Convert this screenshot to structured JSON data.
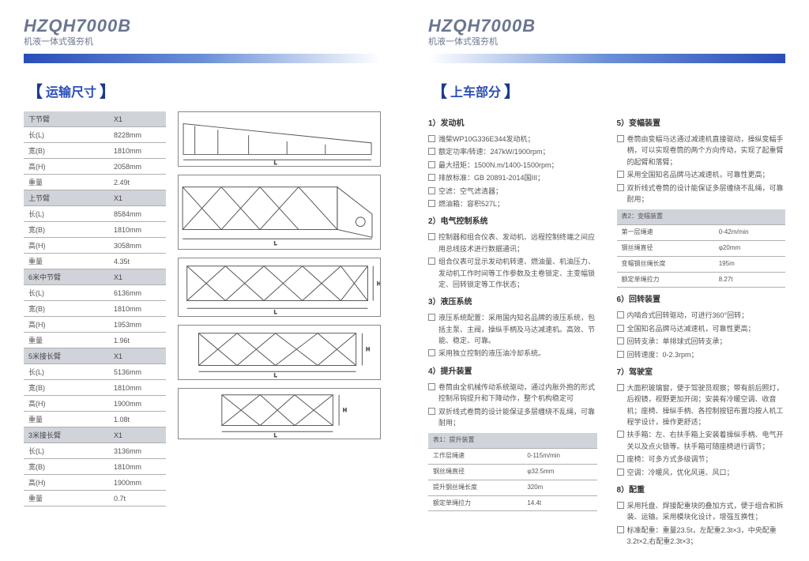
{
  "header": {
    "title": "HZQH7000B",
    "subtitle": "机液一体式强夯机"
  },
  "left": {
    "section": "运输尺寸",
    "groups": [
      {
        "name": "下节臂",
        "qty": "X1",
        "rows": [
          [
            "长(L)",
            "8228mm"
          ],
          [
            "宽(B)",
            "1810mm"
          ],
          [
            "高(H)",
            "2058mm"
          ],
          [
            "重量",
            "2.49t"
          ]
        ]
      },
      {
        "name": "上节臂",
        "qty": "X1",
        "rows": [
          [
            "长(L)",
            "8584mm"
          ],
          [
            "宽(B)",
            "1810mm"
          ],
          [
            "高(H)",
            "3058mm"
          ],
          [
            "重量",
            "4.35t"
          ]
        ]
      },
      {
        "name": "6米中节臂",
        "qty": "X1",
        "rows": [
          [
            "长(L)",
            "6136mm"
          ],
          [
            "宽(B)",
            "1810mm"
          ],
          [
            "高(H)",
            "1953mm"
          ],
          [
            "重量",
            "1.96t"
          ]
        ]
      },
      {
        "name": "5米接长臂",
        "qty": "X1",
        "rows": [
          [
            "长(L)",
            "5136mm"
          ],
          [
            "宽(B)",
            "1810mm"
          ],
          [
            "高(H)",
            "1900mm"
          ],
          [
            "重量",
            "1.08t"
          ]
        ]
      },
      {
        "name": "3米接长臂",
        "qty": "X1",
        "rows": [
          [
            "长(L)",
            "3136mm"
          ],
          [
            "宽(B)",
            "1810mm"
          ],
          [
            "高(H)",
            "1900mm"
          ],
          [
            "重量",
            "0.7t"
          ]
        ]
      }
    ]
  },
  "right": {
    "section": "上车部分",
    "col1": [
      {
        "h": "1）发动机",
        "items": [
          "潍柴WP10G336E344发动机；",
          "额定功率/转速：247kW/1900rpm；",
          "最大扭矩：1500N.m/1400-1500rpm；",
          "排放标准：GB 20891-2014国III；",
          "空滤：空气滤清器；",
          "燃油箱：容积527L；"
        ]
      },
      {
        "h": "2）电气控制系统",
        "items": [
          "控制器和组合仪表、发动机、远程控制终端之间应用总线技术进行数据通讯；",
          "组合仪表可显示发动机转速、燃油量、机油压力、发动机工作时间等工作参数及主卷锁定、主变幅锁定、回转锁定等工作状态；"
        ]
      },
      {
        "h": "3）液压系统",
        "items": [
          "液压系统配置：采用国内知名品牌的液压系统，包括主泵、主阀，操纵手柄及马达减速机。高效、节能、稳定、可靠。",
          "采用独立控制的液压油冷却系统。"
        ]
      },
      {
        "h": "4）提升装置",
        "items": [
          "卷筒由全机械传动系统驱动，通过内胀外抱的形式控制吊钩提升和下降动作，整个机构稳定可",
          "双折线式卷筒的设计能保证多层缠绕不乱绳，可靠耐用；"
        ]
      }
    ],
    "table1": {
      "title": "表1：提升装置",
      "rows": [
        [
          "工作层绳速",
          "0-115m/min"
        ],
        [
          "钢丝绳直径",
          "φ32.5mm"
        ],
        [
          "提升钢丝绳长度",
          "320m"
        ],
        [
          "额定单绳拉力",
          "14.4t"
        ]
      ]
    },
    "col2": [
      {
        "h": "5）变幅装置",
        "items": [
          "卷筒由变幅马达通过减速机直接驱动，操纵变幅手柄，可以实现卷筒的两个方向传动，实现了起重臂的起臂和落臂；",
          "采用全国知名品牌马达减速机，可靠性更高；",
          "双折线式卷筒的设计能保证多层缠绕不乱绳，可靠耐用；"
        ]
      }
    ],
    "table2": {
      "title": "表2：变幅装置",
      "rows": [
        [
          "第一层绳速",
          "0-42m/min"
        ],
        [
          "钢丝绳直径",
          "φ20mm"
        ],
        [
          "变幅钢丝绳长度",
          "195m"
        ],
        [
          "额定单绳拉力",
          "8.27t"
        ]
      ]
    },
    "col2b": [
      {
        "h": "6）回转装置",
        "items": [
          "内啮合式回转驱动，可进行360°回转；",
          "全国知名品牌马达减速机，可靠性更高；",
          "回转支承：单排球式回转支承；",
          "回转速度：0-2.3rpm；"
        ]
      },
      {
        "h": "7）驾驶室",
        "items": [
          "大面积玻璃窗，便于驾驶员观察；带有前后照灯，后视镜，视野更加开阔；安装有冷暖空调、收音机；座椅、操纵手柄、各控制按钮布置均按人机工程学设计，操作更舒适；",
          "扶手箱：左、右扶手箱上安装着操纵手柄、电气开关以及点火锁等。扶手箱可随座椅进行调节；",
          "座椅：可多方式多级调节；",
          "空调：冷暖风，优化风道、风口；"
        ]
      },
      {
        "h": "8）配重",
        "items": [
          "采用托盘、焊接配重块的叠加方式，便于组合和拆装、运输。采用模块化设计，增强互换性；",
          "标准配重：重量23.5t，左配重2.3t×3，中央配重3.2t×2,右配重2.3t×3；"
        ]
      }
    ]
  }
}
